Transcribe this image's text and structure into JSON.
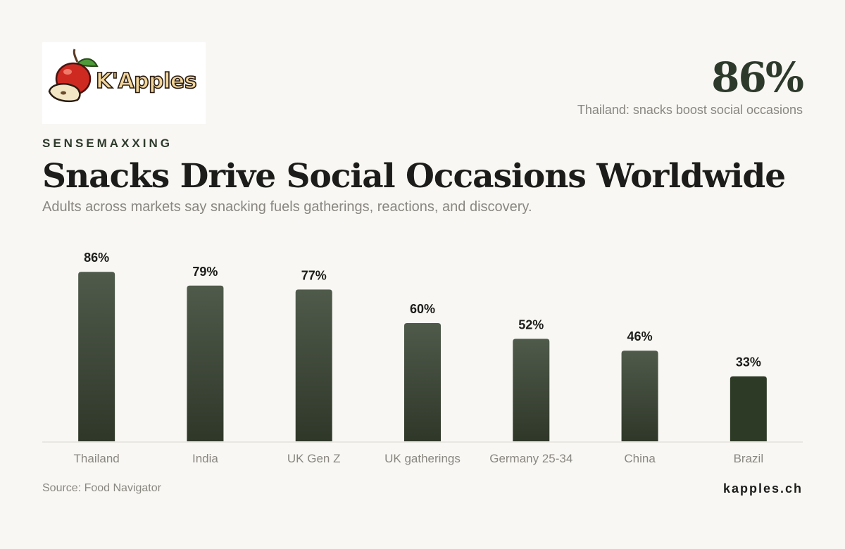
{
  "brand": {
    "logo_text": "K'Apples",
    "kicker": "SENSEMAXXING",
    "site": "kapples.ch"
  },
  "headline": {
    "stat_value": "86%",
    "stat_label": "Thailand: snacks boost social occasions"
  },
  "title": "Snacks Drive Social Occasions Worldwide",
  "subtitle": "Adults across markets say snacking fuels gatherings, reactions, and discovery.",
  "source": "Source: Food Navigator",
  "colors": {
    "bar_top": "#4f5a4b",
    "bar_bottom": "#2f3729",
    "bar_highlight": "#2d3a25",
    "baseline": "#d9d7d1",
    "category_text": "#8a8781",
    "value_text": "#1c1c1a"
  },
  "chart_data": {
    "type": "bar",
    "categories": [
      "Thailand",
      "India",
      "UK Gen Z",
      "UK gatherings",
      "Germany 25-34",
      "China",
      "Brazil"
    ],
    "values": [
      86,
      79,
      77,
      60,
      52,
      46,
      33
    ],
    "value_labels": [
      "86%",
      "79%",
      "77%",
      "60%",
      "52%",
      "46%",
      "33%"
    ],
    "unit": "%",
    "ylim": [
      0,
      100
    ],
    "grid": false,
    "legend": "none"
  }
}
